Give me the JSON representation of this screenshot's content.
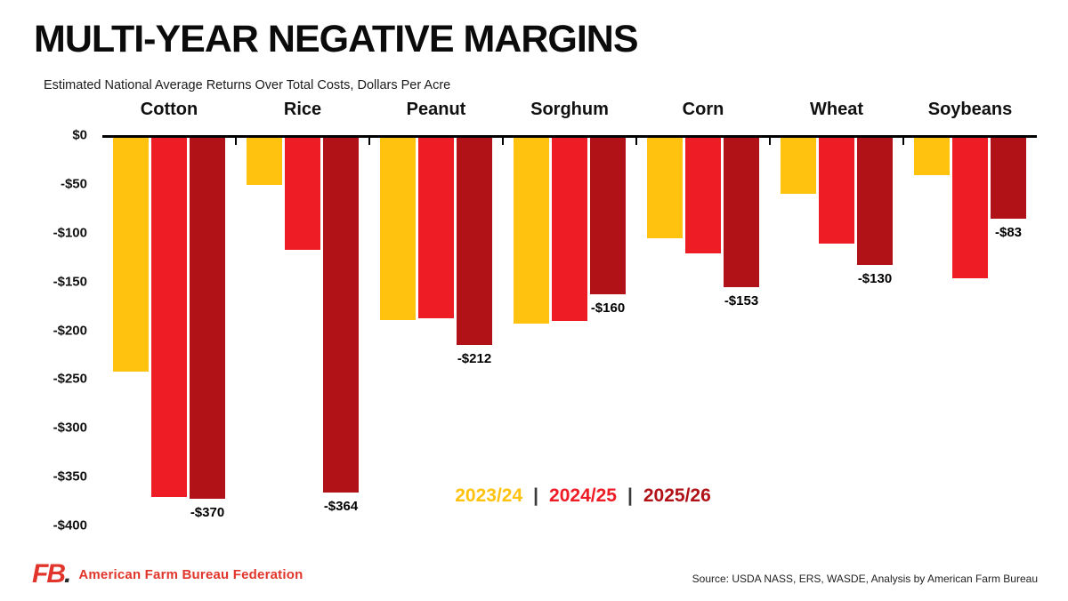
{
  "header": {
    "title": "MULTI-YEAR NEGATIVE MARGINS",
    "subtitle": "Estimated National Average Returns Over Total Costs, Dollars Per Acre"
  },
  "chart_data": {
    "type": "bar",
    "title": "MULTI-YEAR NEGATIVE MARGINS",
    "subtitle": "Estimated National Average Returns Over Total Costs, Dollars Per Acre",
    "categories": [
      "Cotton",
      "Rice",
      "Peanut",
      "Sorghum",
      "Corn",
      "Wheat",
      "Soybeans"
    ],
    "series": [
      {
        "name": "2023/24",
        "color": "#FFC20E",
        "values": [
          -240,
          -48,
          -187,
          -190,
          -103,
          -57,
          -38
        ]
      },
      {
        "name": "2024/25",
        "color": "#EE1C25",
        "values": [
          -368,
          -115,
          -185,
          -188,
          -118,
          -108,
          -144
        ]
      },
      {
        "name": "2025/26",
        "color": "#B01218",
        "values": [
          -370,
          -364,
          -212,
          -160,
          -153,
          -130,
          -83
        ]
      }
    ],
    "bar_labels": [
      "-$370",
      "-$364",
      "-$212",
      "-$160",
      "-$153",
      "-$130",
      "-$83"
    ],
    "ylim": [
      -400,
      0
    ],
    "yticks": [
      "$0",
      "-$50",
      "-$100",
      "-$150",
      "-$200",
      "-$250",
      "-$300",
      "-$350",
      "-$400"
    ],
    "grid": false,
    "legend_position": "inside-bottom-center"
  },
  "legend": {
    "separator": "|",
    "items": [
      {
        "label": "2023/24",
        "color": "#FFC20E"
      },
      {
        "label": "2024/25",
        "color": "#EE1C25"
      },
      {
        "label": "2025/26",
        "color": "#B01218"
      }
    ]
  },
  "footer": {
    "logo_text": "FB",
    "logo_dot": ".",
    "org": "American Farm Bureau Federation",
    "source": "Source: USDA NASS, ERS, WASDE, Analysis by American Farm Bureau"
  }
}
